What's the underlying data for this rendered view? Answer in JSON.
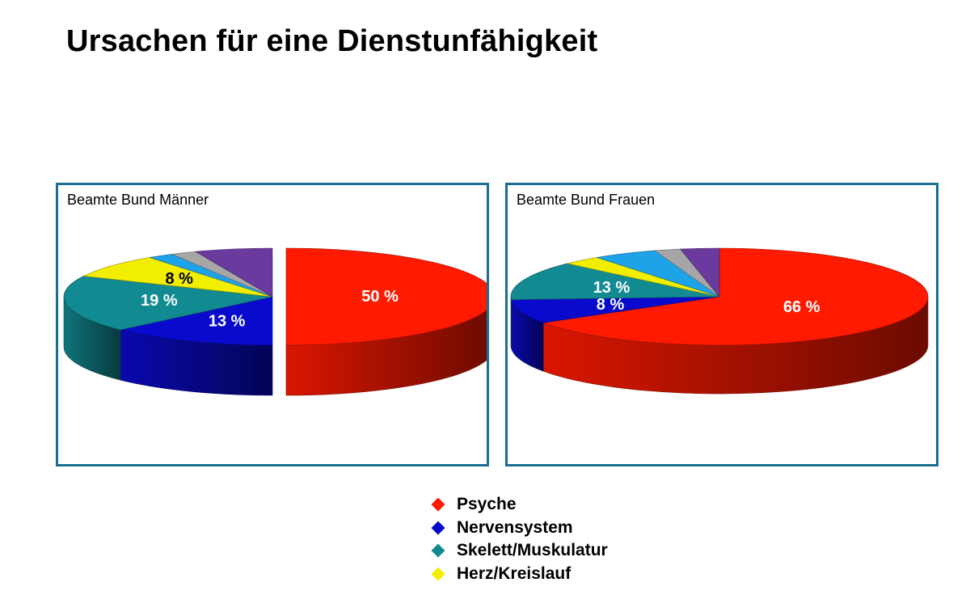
{
  "title": "Ursachen für eine Dienstunfähigkeit",
  "colors": {
    "psyche": "#ff1a00",
    "nervensystem": "#0a0acc",
    "skelett": "#128a92",
    "herz": "#f2ee00",
    "light_blue": "#1ea3e8",
    "gray": "#a6a6a6",
    "purple": "#6b3a9e",
    "frame": "#1a6e8e"
  },
  "legend": [
    {
      "label": "Psyche",
      "color": "#ff1a00"
    },
    {
      "label": "Nervensystem",
      "color": "#0a0acc"
    },
    {
      "label": "Skelett/Muskulatur",
      "color": "#128a92"
    },
    {
      "label": "Herz/Kreislauf",
      "color": "#f2ee00"
    }
  ],
  "chart_data": [
    {
      "type": "pie",
      "title": "Beamte Bund Männer",
      "slices": [
        {
          "label": "Psyche",
          "value": 50,
          "data_label": "50 %",
          "color": "#ff1a00"
        },
        {
          "label": "Nervensystem",
          "value": 13,
          "data_label": "13 %",
          "color": "#0a0acc"
        },
        {
          "label": "Skelett/Muskulatur",
          "value": 19,
          "data_label": "19 %",
          "color": "#128a92"
        },
        {
          "label": "Herz/Kreislauf",
          "value": 8,
          "data_label": "8 %",
          "color": "#f2ee00"
        },
        {
          "label": "",
          "value": 2,
          "data_label": "",
          "color": "#1ea3e8"
        },
        {
          "label": "",
          "value": 2,
          "data_label": "",
          "color": "#a6a6a6"
        },
        {
          "label": "",
          "value": 6,
          "data_label": "",
          "color": "#6b3a9e"
        }
      ],
      "three_d": true
    },
    {
      "type": "pie",
      "title": "Beamte Bund Frauen",
      "slices": [
        {
          "label": "Psyche",
          "value": 66,
          "data_label": "66 %",
          "color": "#ff1a00"
        },
        {
          "label": "Nervensystem",
          "value": 8,
          "data_label": "8 %",
          "color": "#0a0acc"
        },
        {
          "label": "Skelett/Muskulatur",
          "value": 13,
          "data_label": "13 %",
          "color": "#128a92"
        },
        {
          "label": "Herz/Kreislauf",
          "value": 3,
          "data_label": "",
          "color": "#f2ee00"
        },
        {
          "label": "",
          "value": 5,
          "data_label": "",
          "color": "#1ea3e8"
        },
        {
          "label": "",
          "value": 2,
          "data_label": "",
          "color": "#a6a6a6"
        },
        {
          "label": "",
          "value": 3,
          "data_label": "",
          "color": "#6b3a9e"
        }
      ],
      "three_d": true
    }
  ]
}
